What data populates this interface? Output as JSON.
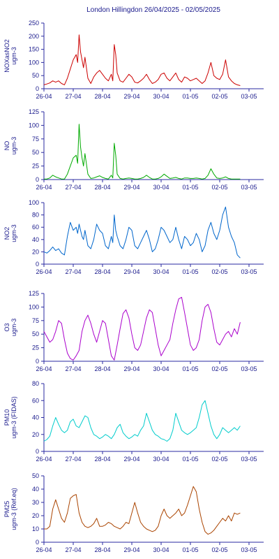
{
  "page_title": "London Hillingdon  26/04/2025 - 02/05/2025",
  "chart_data": [
    {
      "type": "line",
      "ylabel": [
        "NOXasNO2",
        "ugm-3"
      ],
      "color": "#cc0000",
      "ylim": [
        0,
        250
      ],
      "yticks": [
        0,
        50,
        100,
        150,
        200,
        250
      ],
      "xlim": [
        0,
        7.5
      ],
      "xticks": [
        "26-04",
        "27-04",
        "28-04",
        "29-04",
        "30-04",
        "01-05",
        "02-05",
        "03-05"
      ],
      "x": [
        0.0,
        0.1,
        0.2,
        0.3,
        0.4,
        0.5,
        0.6,
        0.7,
        0.8,
        0.9,
        1.0,
        1.1,
        1.15,
        1.2,
        1.25,
        1.3,
        1.35,
        1.4,
        1.5,
        1.6,
        1.7,
        1.8,
        1.9,
        2.0,
        2.1,
        2.2,
        2.3,
        2.35,
        2.4,
        2.45,
        2.5,
        2.6,
        2.7,
        2.8,
        2.9,
        3.0,
        3.1,
        3.2,
        3.3,
        3.4,
        3.5,
        3.6,
        3.7,
        3.8,
        3.9,
        4.0,
        4.1,
        4.2,
        4.3,
        4.4,
        4.5,
        4.6,
        4.7,
        4.8,
        4.9,
        5.0,
        5.1,
        5.2,
        5.3,
        5.4,
        5.5,
        5.6,
        5.7,
        5.8,
        5.9,
        6.0,
        6.1,
        6.2,
        6.3,
        6.4,
        6.5,
        6.6,
        6.7
      ],
      "y": [
        15,
        18,
        22,
        30,
        25,
        30,
        20,
        15,
        40,
        75,
        110,
        130,
        100,
        205,
        140,
        110,
        80,
        120,
        40,
        20,
        45,
        60,
        70,
        55,
        40,
        30,
        55,
        30,
        168,
        130,
        60,
        30,
        25,
        40,
        55,
        45,
        25,
        22,
        30,
        40,
        55,
        35,
        20,
        25,
        35,
        55,
        60,
        40,
        30,
        45,
        60,
        35,
        25,
        45,
        40,
        30,
        35,
        40,
        30,
        20,
        30,
        60,
        100,
        50,
        40,
        35,
        55,
        110,
        45,
        30,
        20,
        15,
        12
      ]
    },
    {
      "type": "line",
      "ylabel": [
        "NO",
        "ugm-3"
      ],
      "color": "#00aa00",
      "ylim": [
        0,
        125
      ],
      "yticks": [
        0,
        25,
        50,
        75,
        100,
        125
      ],
      "xlim": [
        0,
        7.5
      ],
      "xticks": [
        "26-04",
        "27-04",
        "28-04",
        "29-04",
        "30-04",
        "01-05",
        "02-05",
        "03-05"
      ],
      "x": [
        0.0,
        0.1,
        0.2,
        0.3,
        0.4,
        0.5,
        0.6,
        0.7,
        0.8,
        0.9,
        1.0,
        1.1,
        1.15,
        1.2,
        1.25,
        1.3,
        1.35,
        1.4,
        1.5,
        1.6,
        1.7,
        1.8,
        1.9,
        2.0,
        2.1,
        2.2,
        2.3,
        2.35,
        2.4,
        2.45,
        2.5,
        2.6,
        2.7,
        2.8,
        2.9,
        3.0,
        3.1,
        3.2,
        3.3,
        3.4,
        3.5,
        3.6,
        3.7,
        3.8,
        3.9,
        4.0,
        4.1,
        4.2,
        4.3,
        4.4,
        4.5,
        4.6,
        4.7,
        4.8,
        4.9,
        5.0,
        5.1,
        5.2,
        5.3,
        5.4,
        5.5,
        5.6,
        5.7,
        5.8,
        5.9,
        6.0,
        6.1,
        6.2,
        6.3,
        6.4,
        6.5,
        6.6,
        6.7
      ],
      "y": [
        1,
        1,
        3,
        8,
        5,
        3,
        1,
        1,
        10,
        25,
        40,
        45,
        30,
        102,
        60,
        40,
        25,
        48,
        10,
        2,
        3,
        5,
        7,
        4,
        2,
        1,
        8,
        3,
        67,
        45,
        10,
        2,
        1,
        2,
        3,
        2,
        1,
        1,
        2,
        4,
        8,
        4,
        1,
        1,
        2,
        5,
        10,
        6,
        2,
        3,
        4,
        2,
        1,
        3,
        3,
        2,
        2,
        3,
        2,
        1,
        2,
        8,
        20,
        10,
        3,
        2,
        3,
        5,
        2,
        1,
        1,
        1,
        1
      ]
    },
    {
      "type": "line",
      "ylabel": [
        "NO2",
        "ugm-3"
      ],
      "color": "#0066cc",
      "ylim": [
        0,
        100
      ],
      "yticks": [
        0,
        20,
        40,
        60,
        80,
        100
      ],
      "xlim": [
        0,
        7.5
      ],
      "xticks": [
        "26-04",
        "27-04",
        "28-04",
        "29-04",
        "30-04",
        "01-05",
        "02-05",
        "03-05"
      ],
      "x": [
        0.0,
        0.1,
        0.2,
        0.3,
        0.4,
        0.5,
        0.6,
        0.7,
        0.8,
        0.9,
        1.0,
        1.1,
        1.15,
        1.2,
        1.25,
        1.3,
        1.35,
        1.4,
        1.5,
        1.6,
        1.7,
        1.8,
        1.9,
        2.0,
        2.1,
        2.2,
        2.3,
        2.35,
        2.4,
        2.45,
        2.5,
        2.6,
        2.7,
        2.8,
        2.9,
        3.0,
        3.1,
        3.2,
        3.3,
        3.4,
        3.5,
        3.6,
        3.7,
        3.8,
        3.9,
        4.0,
        4.1,
        4.2,
        4.3,
        4.4,
        4.5,
        4.6,
        4.7,
        4.8,
        4.9,
        5.0,
        5.1,
        5.2,
        5.3,
        5.4,
        5.5,
        5.6,
        5.7,
        5.8,
        5.9,
        6.0,
        6.1,
        6.2,
        6.3,
        6.4,
        6.5,
        6.6,
        6.7
      ],
      "y": [
        20,
        18,
        22,
        28,
        22,
        25,
        18,
        15,
        45,
        68,
        55,
        60,
        50,
        65,
        55,
        45,
        40,
        55,
        30,
        25,
        40,
        65,
        55,
        50,
        30,
        25,
        45,
        35,
        80,
        55,
        45,
        30,
        25,
        40,
        60,
        55,
        30,
        25,
        35,
        45,
        55,
        40,
        20,
        25,
        40,
        60,
        55,
        45,
        35,
        40,
        60,
        40,
        25,
        45,
        40,
        30,
        35,
        50,
        40,
        20,
        30,
        55,
        68,
        50,
        40,
        55,
        80,
        93,
        60,
        45,
        35,
        15,
        10
      ]
    },
    {
      "type": "line",
      "ylabel": [
        "O3",
        "ugm-3"
      ],
      "color": "#aa00cc",
      "ylim": [
        0,
        125
      ],
      "yticks": [
        0,
        25,
        50,
        75,
        100,
        125
      ],
      "xlim": [
        0,
        7.5
      ],
      "xticks": [
        "26-04",
        "27-04",
        "28-04",
        "29-04",
        "30-04",
        "01-05",
        "02-05",
        "03-05"
      ],
      "x": [
        0.0,
        0.1,
        0.2,
        0.3,
        0.4,
        0.5,
        0.6,
        0.7,
        0.8,
        0.9,
        1.0,
        1.1,
        1.2,
        1.3,
        1.4,
        1.5,
        1.6,
        1.7,
        1.8,
        1.9,
        2.0,
        2.1,
        2.2,
        2.3,
        2.4,
        2.5,
        2.6,
        2.7,
        2.8,
        2.9,
        3.0,
        3.1,
        3.2,
        3.3,
        3.4,
        3.5,
        3.6,
        3.7,
        3.8,
        3.9,
        4.0,
        4.1,
        4.2,
        4.3,
        4.4,
        4.5,
        4.6,
        4.7,
        4.8,
        4.9,
        5.0,
        5.1,
        5.2,
        5.3,
        5.4,
        5.5,
        5.6,
        5.7,
        5.8,
        5.9,
        6.0,
        6.1,
        6.2,
        6.3,
        6.4,
        6.5,
        6.6,
        6.7
      ],
      "y": [
        55,
        45,
        35,
        40,
        55,
        75,
        70,
        40,
        15,
        5,
        2,
        10,
        20,
        55,
        75,
        85,
        70,
        50,
        35,
        55,
        75,
        70,
        40,
        10,
        2,
        30,
        60,
        88,
        95,
        80,
        50,
        25,
        20,
        30,
        55,
        80,
        95,
        90,
        60,
        30,
        10,
        20,
        30,
        40,
        70,
        95,
        115,
        118,
        90,
        60,
        30,
        20,
        25,
        40,
        75,
        100,
        105,
        90,
        60,
        35,
        30,
        40,
        50,
        55,
        45,
        60,
        50,
        72
      ]
    },
    {
      "type": "line",
      "ylabel": [
        "PM10",
        "ugm-3 (FIDAS)"
      ],
      "color": "#00cccc",
      "ylim": [
        0,
        80
      ],
      "yticks": [
        0,
        20,
        40,
        60,
        80
      ],
      "xlim": [
        0,
        7.5
      ],
      "xticks": [
        "26-04",
        "27-04",
        "28-04",
        "29-04",
        "30-04",
        "01-05",
        "02-05",
        "03-05"
      ],
      "x": [
        0.0,
        0.1,
        0.2,
        0.3,
        0.4,
        0.5,
        0.6,
        0.7,
        0.8,
        0.9,
        1.0,
        1.1,
        1.2,
        1.3,
        1.4,
        1.5,
        1.6,
        1.7,
        1.8,
        1.9,
        2.0,
        2.1,
        2.2,
        2.3,
        2.4,
        2.5,
        2.6,
        2.7,
        2.8,
        2.9,
        3.0,
        3.1,
        3.2,
        3.3,
        3.4,
        3.5,
        3.6,
        3.7,
        3.8,
        3.9,
        4.0,
        4.1,
        4.2,
        4.3,
        4.4,
        4.5,
        4.6,
        4.7,
        4.8,
        4.9,
        5.0,
        5.1,
        5.2,
        5.3,
        5.4,
        5.5,
        5.6,
        5.7,
        5.8,
        5.9,
        6.0,
        6.1,
        6.2,
        6.3,
        6.4,
        6.5,
        6.6,
        6.7
      ],
      "y": [
        12,
        14,
        18,
        30,
        40,
        32,
        25,
        22,
        25,
        35,
        38,
        30,
        28,
        35,
        42,
        40,
        28,
        20,
        18,
        15,
        17,
        20,
        18,
        15,
        20,
        28,
        32,
        22,
        18,
        15,
        17,
        20,
        18,
        25,
        30,
        45,
        35,
        25,
        20,
        18,
        15,
        14,
        12,
        15,
        25,
        45,
        35,
        25,
        22,
        20,
        22,
        25,
        28,
        40,
        55,
        60,
        45,
        30,
        20,
        15,
        20,
        28,
        25,
        22,
        25,
        28,
        25,
        30
      ]
    },
    {
      "type": "line",
      "ylabel": [
        "PM25",
        "ugm-3 (Ref.eq)"
      ],
      "color": "#aa4400",
      "ylim": [
        0,
        50
      ],
      "yticks": [
        0,
        10,
        20,
        30,
        40,
        50
      ],
      "xlim": [
        0,
        7.5
      ],
      "xticks": [
        "26-04",
        "27-04",
        "28-04",
        "29-04",
        "30-04",
        "01-05",
        "02-05",
        "03-05"
      ],
      "x": [
        0.0,
        0.1,
        0.2,
        0.3,
        0.4,
        0.5,
        0.6,
        0.7,
        0.8,
        0.9,
        1.0,
        1.1,
        1.2,
        1.3,
        1.4,
        1.5,
        1.6,
        1.7,
        1.8,
        1.9,
        2.0,
        2.1,
        2.2,
        2.3,
        2.4,
        2.5,
        2.6,
        2.7,
        2.8,
        2.9,
        3.0,
        3.1,
        3.2,
        3.3,
        3.4,
        3.5,
        3.6,
        3.7,
        3.8,
        3.9,
        4.0,
        4.1,
        4.2,
        4.3,
        4.4,
        4.5,
        4.6,
        4.7,
        4.8,
        4.9,
        5.0,
        5.1,
        5.2,
        5.3,
        5.4,
        5.5,
        5.6,
        5.7,
        5.8,
        5.9,
        6.0,
        6.1,
        6.2,
        6.3,
        6.4,
        6.5,
        6.6,
        6.7
      ],
      "y": [
        10,
        10,
        12,
        25,
        32,
        25,
        18,
        15,
        22,
        33,
        35,
        36,
        22,
        15,
        12,
        11,
        12,
        14,
        18,
        12,
        12,
        13,
        15,
        14,
        12,
        11,
        10,
        12,
        15,
        14,
        22,
        30,
        22,
        15,
        12,
        10,
        9,
        8,
        9,
        12,
        20,
        25,
        20,
        18,
        20,
        22,
        25,
        20,
        22,
        28,
        35,
        42,
        38,
        25,
        15,
        8,
        6,
        7,
        9,
        12,
        15,
        18,
        16,
        20,
        16,
        22,
        21,
        22
      ]
    }
  ]
}
